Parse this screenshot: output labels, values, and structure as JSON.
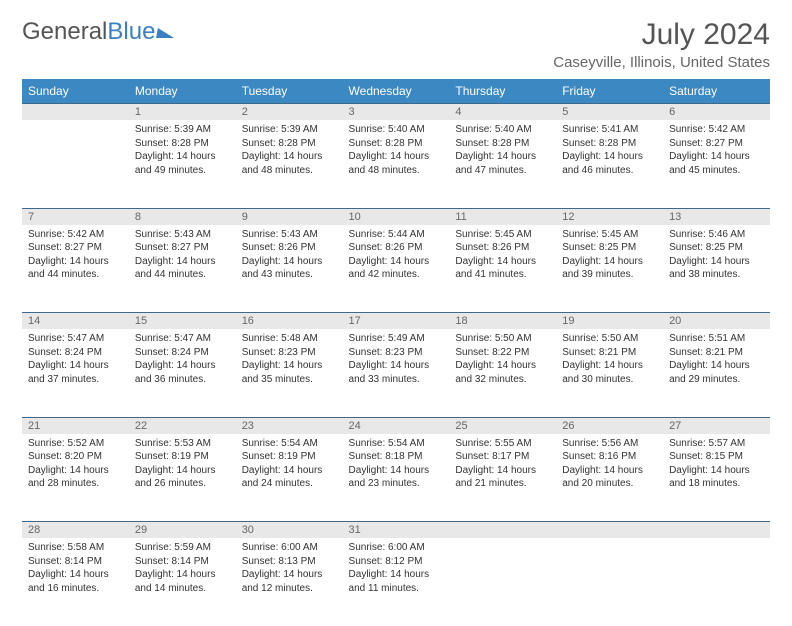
{
  "logo": {
    "part1": "General",
    "part2": "Blue"
  },
  "title": "July 2024",
  "location": "Caseyville, Illinois, United States",
  "colors": {
    "header_bg": "#3b88c3",
    "header_text": "#ffffff",
    "daynum_bg": "#e8e8e8",
    "row_divider": "#3b6a8c",
    "text": "#333333",
    "title_text": "#555555"
  },
  "dayHeaders": [
    "Sunday",
    "Monday",
    "Tuesday",
    "Wednesday",
    "Thursday",
    "Friday",
    "Saturday"
  ],
  "weeks": [
    {
      "nums": [
        "",
        "1",
        "2",
        "3",
        "4",
        "5",
        "6"
      ],
      "cells": [
        null,
        {
          "sunrise": "Sunrise: 5:39 AM",
          "sunset": "Sunset: 8:28 PM",
          "day1": "Daylight: 14 hours",
          "day2": "and 49 minutes."
        },
        {
          "sunrise": "Sunrise: 5:39 AM",
          "sunset": "Sunset: 8:28 PM",
          "day1": "Daylight: 14 hours",
          "day2": "and 48 minutes."
        },
        {
          "sunrise": "Sunrise: 5:40 AM",
          "sunset": "Sunset: 8:28 PM",
          "day1": "Daylight: 14 hours",
          "day2": "and 48 minutes."
        },
        {
          "sunrise": "Sunrise: 5:40 AM",
          "sunset": "Sunset: 8:28 PM",
          "day1": "Daylight: 14 hours",
          "day2": "and 47 minutes."
        },
        {
          "sunrise": "Sunrise: 5:41 AM",
          "sunset": "Sunset: 8:28 PM",
          "day1": "Daylight: 14 hours",
          "day2": "and 46 minutes."
        },
        {
          "sunrise": "Sunrise: 5:42 AM",
          "sunset": "Sunset: 8:27 PM",
          "day1": "Daylight: 14 hours",
          "day2": "and 45 minutes."
        }
      ]
    },
    {
      "nums": [
        "7",
        "8",
        "9",
        "10",
        "11",
        "12",
        "13"
      ],
      "cells": [
        {
          "sunrise": "Sunrise: 5:42 AM",
          "sunset": "Sunset: 8:27 PM",
          "day1": "Daylight: 14 hours",
          "day2": "and 44 minutes."
        },
        {
          "sunrise": "Sunrise: 5:43 AM",
          "sunset": "Sunset: 8:27 PM",
          "day1": "Daylight: 14 hours",
          "day2": "and 44 minutes."
        },
        {
          "sunrise": "Sunrise: 5:43 AM",
          "sunset": "Sunset: 8:26 PM",
          "day1": "Daylight: 14 hours",
          "day2": "and 43 minutes."
        },
        {
          "sunrise": "Sunrise: 5:44 AM",
          "sunset": "Sunset: 8:26 PM",
          "day1": "Daylight: 14 hours",
          "day2": "and 42 minutes."
        },
        {
          "sunrise": "Sunrise: 5:45 AM",
          "sunset": "Sunset: 8:26 PM",
          "day1": "Daylight: 14 hours",
          "day2": "and 41 minutes."
        },
        {
          "sunrise": "Sunrise: 5:45 AM",
          "sunset": "Sunset: 8:25 PM",
          "day1": "Daylight: 14 hours",
          "day2": "and 39 minutes."
        },
        {
          "sunrise": "Sunrise: 5:46 AM",
          "sunset": "Sunset: 8:25 PM",
          "day1": "Daylight: 14 hours",
          "day2": "and 38 minutes."
        }
      ]
    },
    {
      "nums": [
        "14",
        "15",
        "16",
        "17",
        "18",
        "19",
        "20"
      ],
      "cells": [
        {
          "sunrise": "Sunrise: 5:47 AM",
          "sunset": "Sunset: 8:24 PM",
          "day1": "Daylight: 14 hours",
          "day2": "and 37 minutes."
        },
        {
          "sunrise": "Sunrise: 5:47 AM",
          "sunset": "Sunset: 8:24 PM",
          "day1": "Daylight: 14 hours",
          "day2": "and 36 minutes."
        },
        {
          "sunrise": "Sunrise: 5:48 AM",
          "sunset": "Sunset: 8:23 PM",
          "day1": "Daylight: 14 hours",
          "day2": "and 35 minutes."
        },
        {
          "sunrise": "Sunrise: 5:49 AM",
          "sunset": "Sunset: 8:23 PM",
          "day1": "Daylight: 14 hours",
          "day2": "and 33 minutes."
        },
        {
          "sunrise": "Sunrise: 5:50 AM",
          "sunset": "Sunset: 8:22 PM",
          "day1": "Daylight: 14 hours",
          "day2": "and 32 minutes."
        },
        {
          "sunrise": "Sunrise: 5:50 AM",
          "sunset": "Sunset: 8:21 PM",
          "day1": "Daylight: 14 hours",
          "day2": "and 30 minutes."
        },
        {
          "sunrise": "Sunrise: 5:51 AM",
          "sunset": "Sunset: 8:21 PM",
          "day1": "Daylight: 14 hours",
          "day2": "and 29 minutes."
        }
      ]
    },
    {
      "nums": [
        "21",
        "22",
        "23",
        "24",
        "25",
        "26",
        "27"
      ],
      "cells": [
        {
          "sunrise": "Sunrise: 5:52 AM",
          "sunset": "Sunset: 8:20 PM",
          "day1": "Daylight: 14 hours",
          "day2": "and 28 minutes."
        },
        {
          "sunrise": "Sunrise: 5:53 AM",
          "sunset": "Sunset: 8:19 PM",
          "day1": "Daylight: 14 hours",
          "day2": "and 26 minutes."
        },
        {
          "sunrise": "Sunrise: 5:54 AM",
          "sunset": "Sunset: 8:19 PM",
          "day1": "Daylight: 14 hours",
          "day2": "and 24 minutes."
        },
        {
          "sunrise": "Sunrise: 5:54 AM",
          "sunset": "Sunset: 8:18 PM",
          "day1": "Daylight: 14 hours",
          "day2": "and 23 minutes."
        },
        {
          "sunrise": "Sunrise: 5:55 AM",
          "sunset": "Sunset: 8:17 PM",
          "day1": "Daylight: 14 hours",
          "day2": "and 21 minutes."
        },
        {
          "sunrise": "Sunrise: 5:56 AM",
          "sunset": "Sunset: 8:16 PM",
          "day1": "Daylight: 14 hours",
          "day2": "and 20 minutes."
        },
        {
          "sunrise": "Sunrise: 5:57 AM",
          "sunset": "Sunset: 8:15 PM",
          "day1": "Daylight: 14 hours",
          "day2": "and 18 minutes."
        }
      ]
    },
    {
      "nums": [
        "28",
        "29",
        "30",
        "31",
        "",
        "",
        ""
      ],
      "cells": [
        {
          "sunrise": "Sunrise: 5:58 AM",
          "sunset": "Sunset: 8:14 PM",
          "day1": "Daylight: 14 hours",
          "day2": "and 16 minutes."
        },
        {
          "sunrise": "Sunrise: 5:59 AM",
          "sunset": "Sunset: 8:14 PM",
          "day1": "Daylight: 14 hours",
          "day2": "and 14 minutes."
        },
        {
          "sunrise": "Sunrise: 6:00 AM",
          "sunset": "Sunset: 8:13 PM",
          "day1": "Daylight: 14 hours",
          "day2": "and 12 minutes."
        },
        {
          "sunrise": "Sunrise: 6:00 AM",
          "sunset": "Sunset: 8:12 PM",
          "day1": "Daylight: 14 hours",
          "day2": "and 11 minutes."
        },
        null,
        null,
        null
      ]
    }
  ]
}
